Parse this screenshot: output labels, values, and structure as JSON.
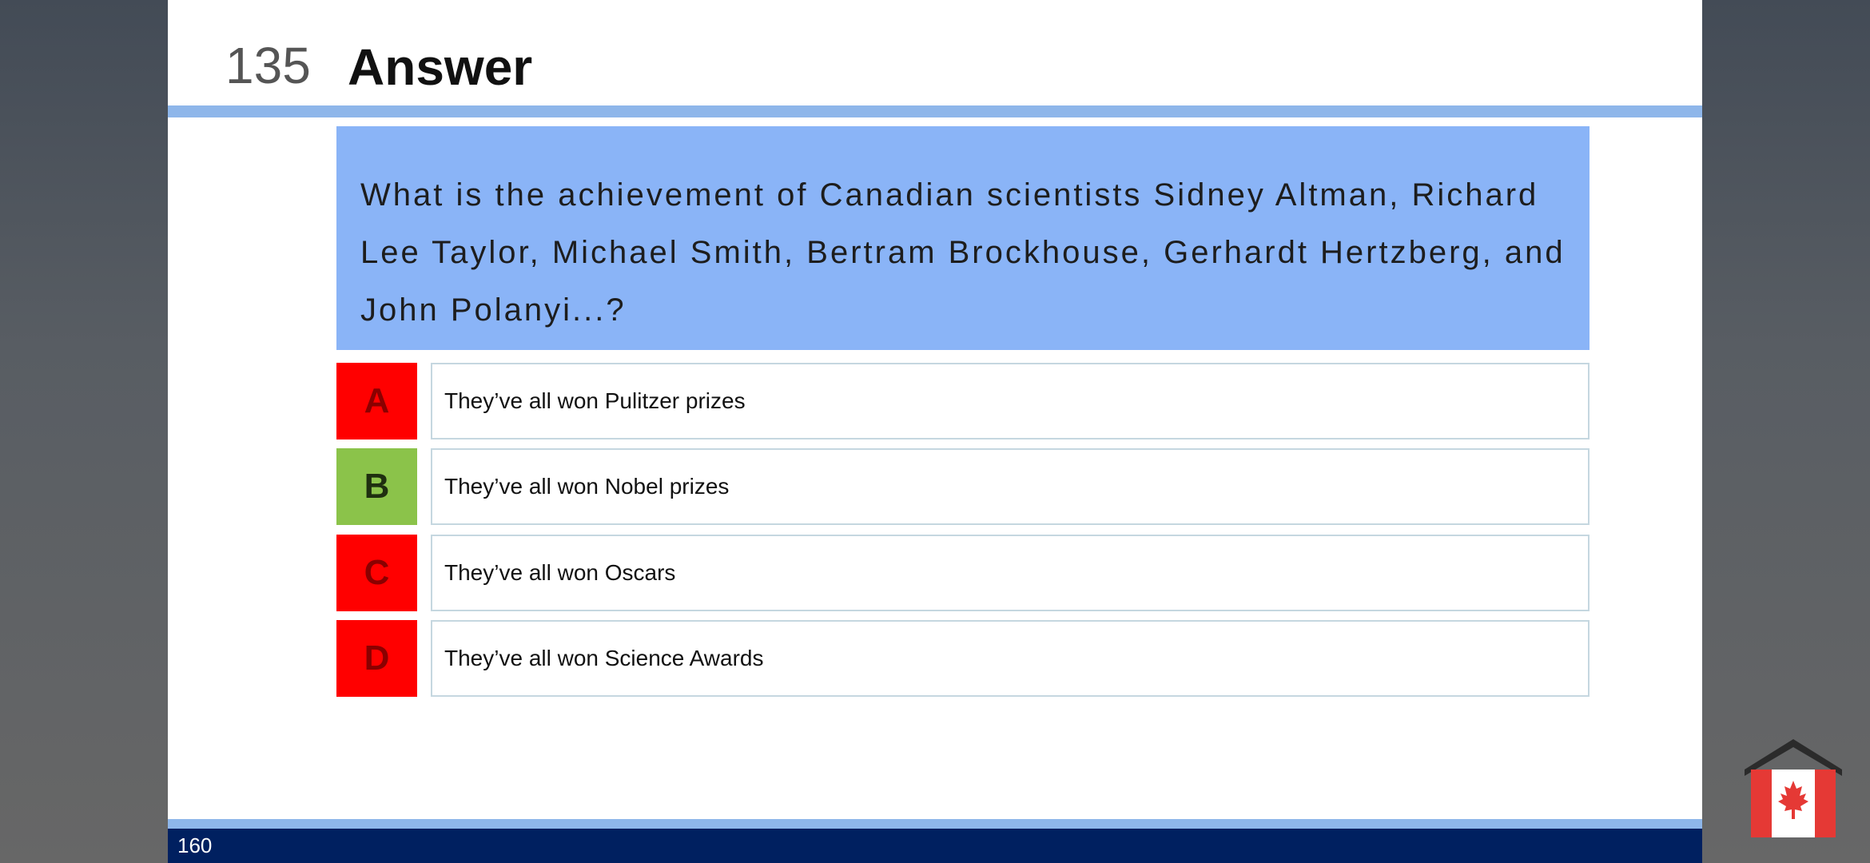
{
  "slide": {
    "number": "135",
    "title": "Answer",
    "question": "What is the achievement of Canadian scientists Sidney Altman, Richard Lee Taylor, Michael Smith, Bertram Brockhouse, Gerhardt Hertzberg, and John Polanyi...?",
    "options": [
      {
        "letter": "A",
        "text": "They’ve all won Pulitzer prizes",
        "status": "wrong"
      },
      {
        "letter": "B",
        "text": "They’ve all won Nobel prizes",
        "status": "correct"
      },
      {
        "letter": "C",
        "text": "They’ve all won Oscars",
        "status": "wrong"
      },
      {
        "letter": "D",
        "text": "They’ve all won Science Awards",
        "status": "wrong"
      }
    ],
    "footer_page": "160"
  },
  "colors": {
    "wrong": "#ff0000",
    "correct": "#8bc34a",
    "question_bg": "#8ab4f7",
    "footer": "#002060",
    "rule": "#8eb6ea"
  },
  "watermark": {
    "icon": "canada-house-flag-icon"
  }
}
